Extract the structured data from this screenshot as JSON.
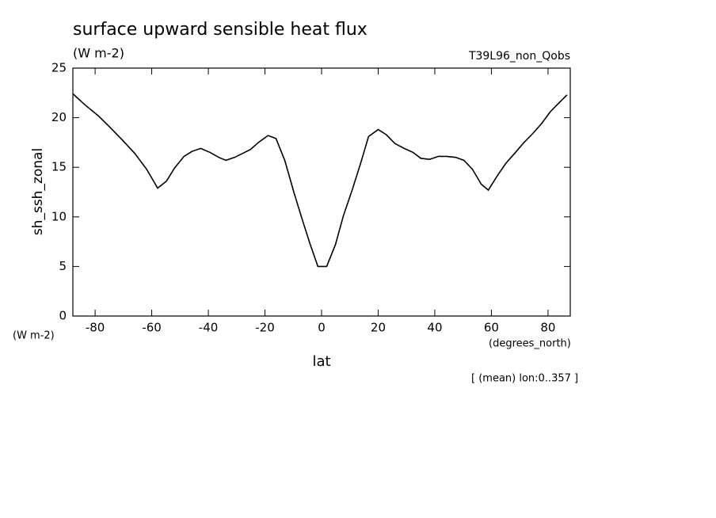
{
  "chart_data": {
    "type": "line",
    "title": "surface upward sensible heat flux",
    "subtitle": "(W m-2)",
    "dataset_label": "T39L96_non_Qobs",
    "ylabel": "sh_ssh_zonal",
    "yunits": "(W m-2)",
    "xlabel": "lat",
    "xunits": "(degrees_north)",
    "note": "[ (mean) lon:0..357 ]",
    "xlim": [
      -87.86,
      87.86
    ],
    "ylim": [
      0,
      25
    ],
    "xticks": [
      -80,
      -60,
      -40,
      -20,
      0,
      20,
      40,
      60,
      80
    ],
    "yticks": [
      0,
      5,
      10,
      15,
      20,
      25
    ],
    "series": [
      {
        "color": "#000000",
        "x": [
          -87.8,
          -83.6,
          -78.9,
          -75,
          -70.2,
          -66,
          -61.8,
          -57.9,
          -54.8,
          -52,
          -48.6,
          -45.8,
          -42.7,
          -39.4,
          -36.3,
          -33.8,
          -30.7,
          -27.9,
          -25.1,
          -22.3,
          -18.9,
          -16.1,
          -13,
          -9.7,
          -6.9,
          -4.1,
          -1.3,
          1.8,
          4.9,
          7.7,
          10.8,
          13.8,
          16.6,
          20,
          22.8,
          25.9,
          29.2,
          32.3,
          35.1,
          38.2,
          41.3,
          44.1,
          47.4,
          50.3,
          53.3,
          56.4,
          58.9,
          62,
          65.1,
          68.5,
          71.5,
          74.6,
          77.7,
          80.8,
          83.9,
          86.7
        ],
        "values": [
          22.4,
          21.3,
          20.2,
          19.1,
          17.7,
          16.4,
          14.8,
          12.9,
          13.6,
          14.9,
          16.1,
          16.6,
          16.9,
          16.5,
          16.0,
          15.7,
          16.0,
          16.4,
          16.8,
          17.5,
          18.2,
          17.9,
          15.7,
          12.4,
          9.8,
          7.3,
          5.0,
          5.0,
          7.2,
          10.1,
          12.7,
          15.4,
          18.1,
          18.8,
          18.3,
          17.4,
          16.9,
          16.5,
          15.9,
          15.8,
          16.1,
          16.1,
          16.0,
          15.7,
          14.8,
          13.3,
          12.7,
          14.1,
          15.4,
          16.5,
          17.5,
          18.4,
          19.4,
          20.6,
          21.5,
          22.3
        ]
      }
    ]
  }
}
